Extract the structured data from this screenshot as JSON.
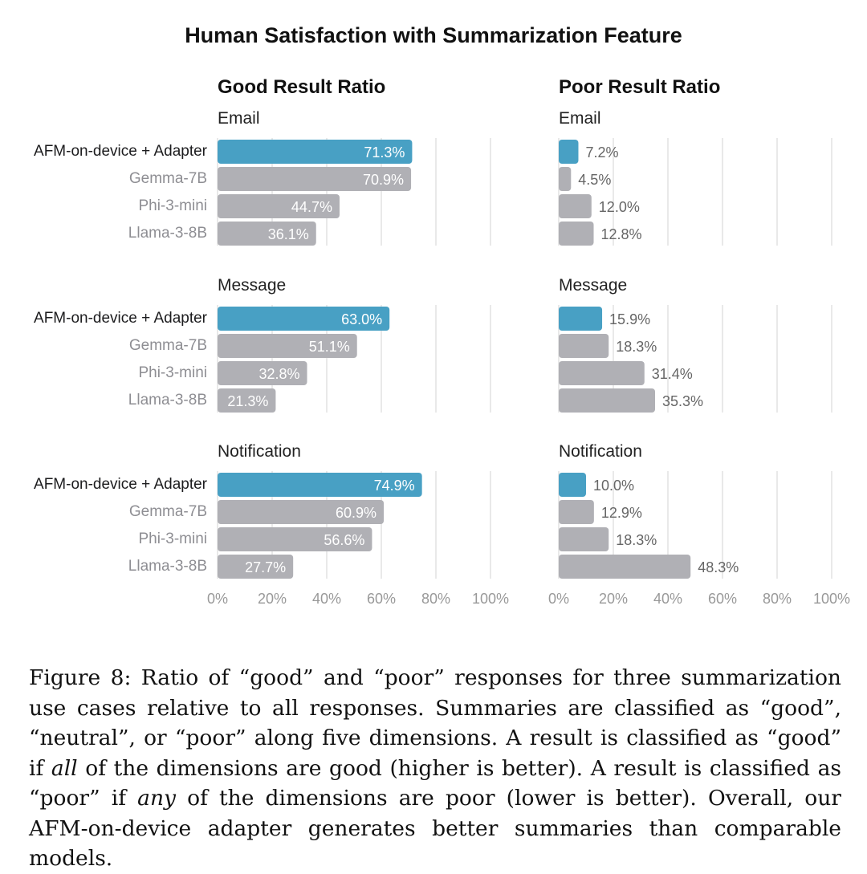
{
  "figure": {
    "title": "Human Satisfaction with Summarization Feature",
    "caption_parts": [
      "Figure 8: Ratio of “good” and “poor” responses for three summarization use cases relative to all responses. Summaries are classified as “good”, “neutral”, or “poor” along five dimensions. A result is classified as “good” if ",
      "all",
      " of the dimensions are good (higher is better). A result is classified as “poor” if ",
      "any",
      " of the dimensions are poor (lower is better). Overall, our AFM-on-device adapter generates better summaries than comparable models."
    ]
  },
  "colors": {
    "highlight": "#48a0c4",
    "other": "#b0b0b5",
    "grid": "#e2e2e2",
    "highlight_label": "#1c1c1e",
    "other_label": "#8e8e93"
  },
  "chart_data": [
    {
      "type": "bar",
      "orientation": "horizontal",
      "title": "Good Result Ratio",
      "categories": [
        "AFM-on-device + Adapter",
        "Gemma-7B",
        "Phi-3-mini",
        "Llama-3-8B"
      ],
      "xlim": [
        0,
        100
      ],
      "xticks": [
        "0%",
        "20%",
        "40%",
        "60%",
        "80%",
        "100%"
      ],
      "grid": true,
      "panels": [
        {
          "name": "Email",
          "values": [
            71.3,
            70.9,
            44.7,
            36.1
          ]
        },
        {
          "name": "Message",
          "values": [
            63.0,
            51.1,
            32.8,
            21.3
          ]
        },
        {
          "name": "Notification",
          "values": [
            74.9,
            60.9,
            56.6,
            27.7
          ]
        }
      ]
    },
    {
      "type": "bar",
      "orientation": "horizontal",
      "title": "Poor Result Ratio",
      "categories": [
        "AFM-on-device + Adapter",
        "Gemma-7B",
        "Phi-3-mini",
        "Llama-3-8B"
      ],
      "xlim": [
        0,
        100
      ],
      "xticks": [
        "0%",
        "20%",
        "40%",
        "60%",
        "80%",
        "100%"
      ],
      "grid": true,
      "panels": [
        {
          "name": "Email",
          "values": [
            7.2,
            4.5,
            12.0,
            12.8
          ]
        },
        {
          "name": "Message",
          "values": [
            15.9,
            18.3,
            31.4,
            35.3
          ]
        },
        {
          "name": "Notification",
          "values": [
            10.0,
            12.9,
            18.3,
            48.3
          ]
        }
      ]
    }
  ]
}
